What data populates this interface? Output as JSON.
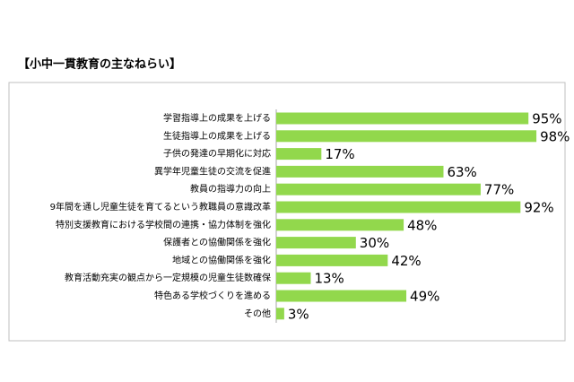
{
  "chart_data": {
    "type": "bar",
    "orientation": "horizontal",
    "title": "【小中一貫教育の主なねらい】",
    "categories": [
      "学習指導上の成果を上げる",
      "生徒指導上の成果を上げる",
      "子供の発達の早期化に対応",
      "異学年児童生徒の交流を促進",
      "教員の指導力の向上",
      "9年間を通し児童生徒を育てるという教職員の意識改革",
      "特別支援教育における学校間の連携・協力体制を強化",
      "保護者との協働関係を強化",
      "地域との協働関係を強化",
      "教育活動充実の観点から一定規模の児童生徒数確保",
      "特色ある学校づくりを進める",
      "その他"
    ],
    "values": [
      95,
      98,
      17,
      63,
      77,
      92,
      48,
      30,
      42,
      13,
      49,
      3
    ],
    "value_labels": [
      "95%",
      "98%",
      "17%",
      "63%",
      "77%",
      "92%",
      "48%",
      "30%",
      "42%",
      "13%",
      "49%",
      "3%"
    ],
    "color": "#92d84c"
  }
}
